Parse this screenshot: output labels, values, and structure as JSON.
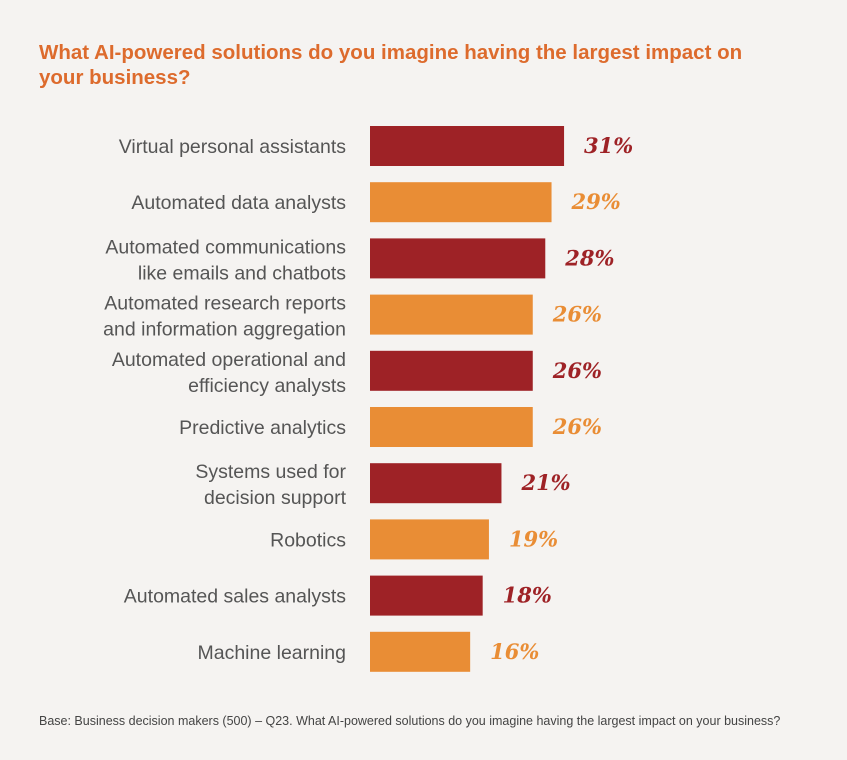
{
  "chart_data": {
    "type": "bar",
    "orientation": "horizontal",
    "title": "What AI-powered solutions do you imagine having the largest impact on your business?",
    "categories": [
      [
        "Virtual personal assistants"
      ],
      [
        "Automated data analysts"
      ],
      [
        "Automated communications",
        "like emails and chatbots"
      ],
      [
        "Automated research reports",
        "and information aggregation"
      ],
      [
        "Automated operational and",
        "efficiency analysts"
      ],
      [
        "Predictive analytics"
      ],
      [
        "Systems used for",
        "decision support"
      ],
      [
        "Robotics"
      ],
      [
        "Automated sales analysts"
      ],
      [
        "Machine learning"
      ]
    ],
    "values": [
      31,
      29,
      28,
      26,
      26,
      26,
      21,
      19,
      18,
      16
    ],
    "value_labels": [
      "31%",
      "29%",
      "28%",
      "26%",
      "26%",
      "26%",
      "21%",
      "19%",
      "18%",
      "16%"
    ],
    "unit": "%",
    "xlim": [
      0,
      35
    ],
    "grid": false,
    "legend": "none",
    "colors": [
      "#9e2226",
      "#e98d35"
    ],
    "footnote": "Base: Business decision makers (500) – Q23. What AI-powered solutions do you imagine having the largest impact on your business?"
  }
}
